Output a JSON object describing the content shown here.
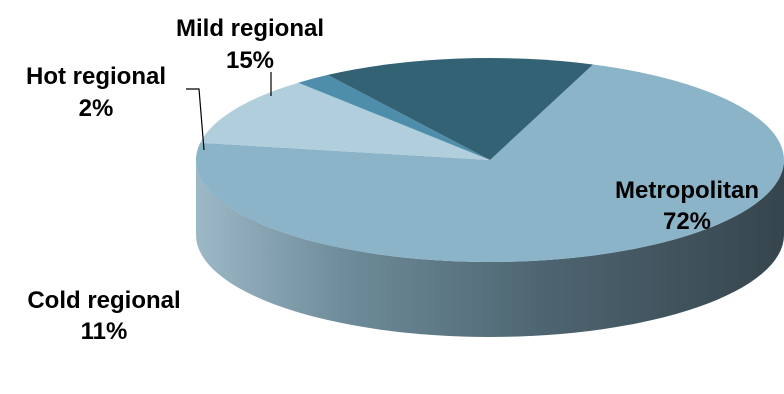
{
  "chart_data": {
    "type": "pie",
    "style": "3d",
    "series": [
      {
        "name": "Metropolitan",
        "value": 72,
        "label": "72%",
        "color": "#8BB4C8"
      },
      {
        "name": "Cold regional",
        "value": 11,
        "label": "11%",
        "color": "#B1CEDC"
      },
      {
        "name": "Hot regional",
        "value": 2,
        "label": "2%",
        "color": "#4F8EAA"
      },
      {
        "name": "Mild regional",
        "value": 15,
        "label": "15%",
        "color": "#346275"
      }
    ]
  }
}
